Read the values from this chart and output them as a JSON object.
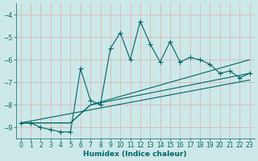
{
  "xlabel": "Humidex (Indice chaleur)",
  "bg_color": "#cde8e8",
  "grid_color": "#b0d0d0",
  "line_color": "#006666",
  "xlim": [
    -0.5,
    23.5
  ],
  "ylim": [
    -9.5,
    -3.5
  ],
  "yticks": [
    -9,
    -8,
    -7,
    -6,
    -5,
    -4
  ],
  "xticks": [
    0,
    1,
    2,
    3,
    4,
    5,
    6,
    7,
    8,
    9,
    10,
    11,
    12,
    13,
    14,
    15,
    16,
    17,
    18,
    19,
    20,
    21,
    22,
    23
  ],
  "series": [
    {
      "x": [
        0,
        1,
        2,
        3,
        4,
        5,
        6,
        7,
        8,
        9,
        10,
        11,
        12,
        13,
        14,
        15,
        16,
        17,
        18,
        19,
        20,
        21,
        22,
        23
      ],
      "y": [
        -8.8,
        -8.8,
        -9.0,
        -9.1,
        -9.2,
        -9.2,
        -6.4,
        -7.8,
        -8.0,
        -5.5,
        -4.8,
        -6.0,
        -4.3,
        -5.3,
        -6.1,
        -5.2,
        -6.1,
        -5.9,
        -6.0,
        -6.2,
        -6.6,
        -6.5,
        -6.8,
        -6.6
      ],
      "marker": true
    },
    {
      "x": [
        0,
        23
      ],
      "y": [
        -8.8,
        -6.9
      ],
      "marker": false
    },
    {
      "x": [
        0,
        5,
        7,
        23
      ],
      "y": [
        -8.8,
        -8.8,
        -8.0,
        -6.6
      ],
      "marker": false
    },
    {
      "x": [
        0,
        5,
        7,
        23
      ],
      "y": [
        -8.8,
        -8.8,
        -8.0,
        -6.0
      ],
      "marker": false
    }
  ]
}
